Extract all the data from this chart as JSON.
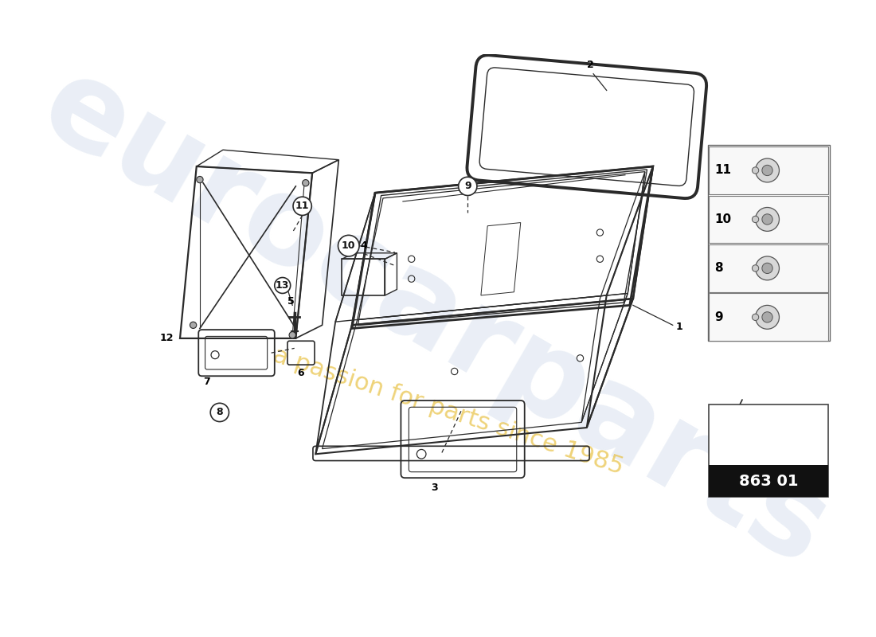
{
  "bg_color": "#ffffff",
  "watermark_text1": "eurocarparts",
  "watermark_text2": "a passion for parts since 1985",
  "part_code": "863 01",
  "line_color": "#2a2a2a",
  "side_items": [
    "11",
    "10",
    "8",
    "9"
  ]
}
